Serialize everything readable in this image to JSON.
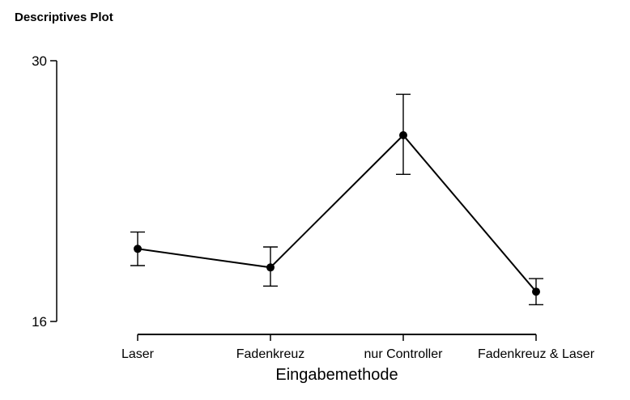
{
  "panel": {
    "title": "Descriptives Plot"
  },
  "chart_data": {
    "type": "line",
    "categories": [
      "Laser",
      "Fadenkreuz",
      "nur Controller",
      "Fadenkreuz & Laser"
    ],
    "series": [
      {
        "values": [
          19.9,
          18.9,
          26.0,
          17.6
        ],
        "error_lower": [
          19.0,
          17.9,
          23.9,
          16.9
        ],
        "error_upper": [
          20.8,
          20.0,
          28.2,
          18.3
        ]
      }
    ],
    "xlabel": "Eingabemethode",
    "ylabel": "",
    "ylim": [
      16,
      30
    ],
    "yticks": [
      "16",
      "30"
    ],
    "grid": false,
    "legend": "none",
    "colors": {
      "line": "#000000",
      "marker": "#000000"
    }
  }
}
